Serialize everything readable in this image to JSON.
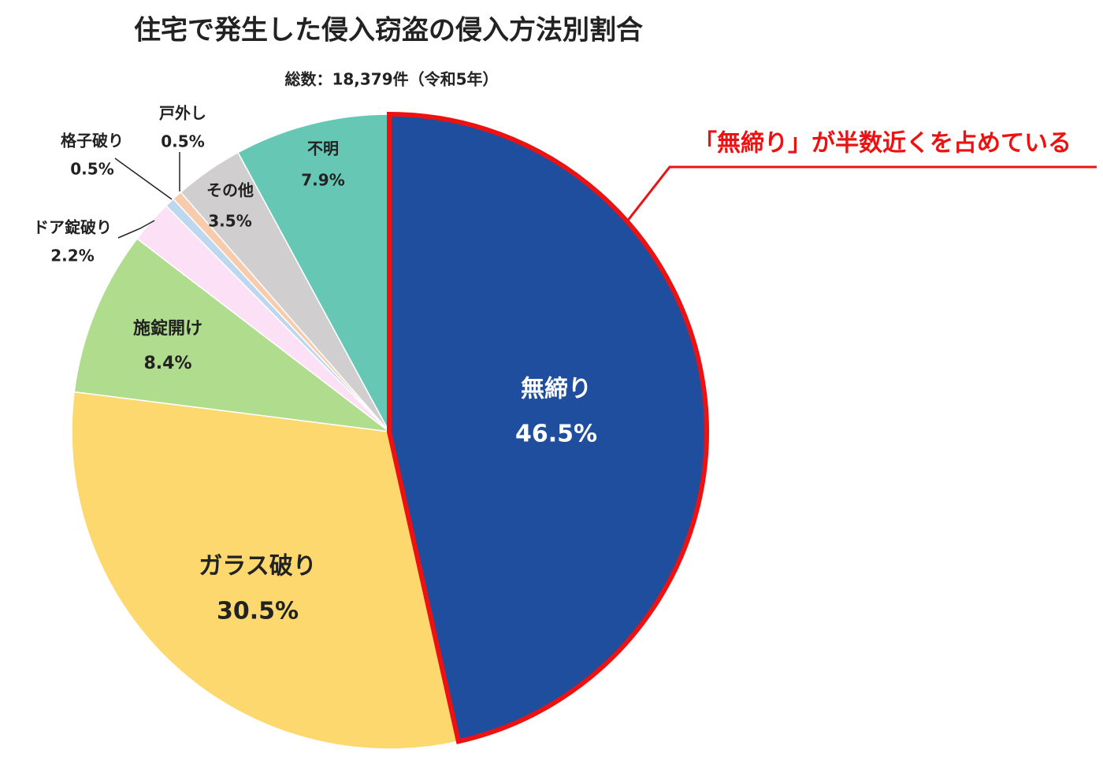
{
  "chart_data": {
    "type": "pie",
    "title": "住宅で発生した侵入窃盗の侵入方法別割合",
    "subtitle": "総数：18,379件（令和5年）",
    "annotation": "「無締り」が半数近くを占めている",
    "categories": [
      "無締り",
      "ガラス破り",
      "施錠開け",
      "ドア錠破り",
      "格子破り",
      "戸外し",
      "その他",
      "不明"
    ],
    "values": [
      46.5,
      30.5,
      8.4,
      2.2,
      0.5,
      0.5,
      3.5,
      7.9
    ],
    "value_labels": [
      "46.5%",
      "30.5%",
      "8.4%",
      "2.2%",
      "0.5%",
      "0.5%",
      "3.5%",
      "7.9%"
    ],
    "colors": [
      "#1f4e9e",
      "#fdd86e",
      "#b0dc8e",
      "#fbe0f6",
      "#bdd7ee",
      "#f8cbad",
      "#d0cece",
      "#66c8b4"
    ]
  }
}
